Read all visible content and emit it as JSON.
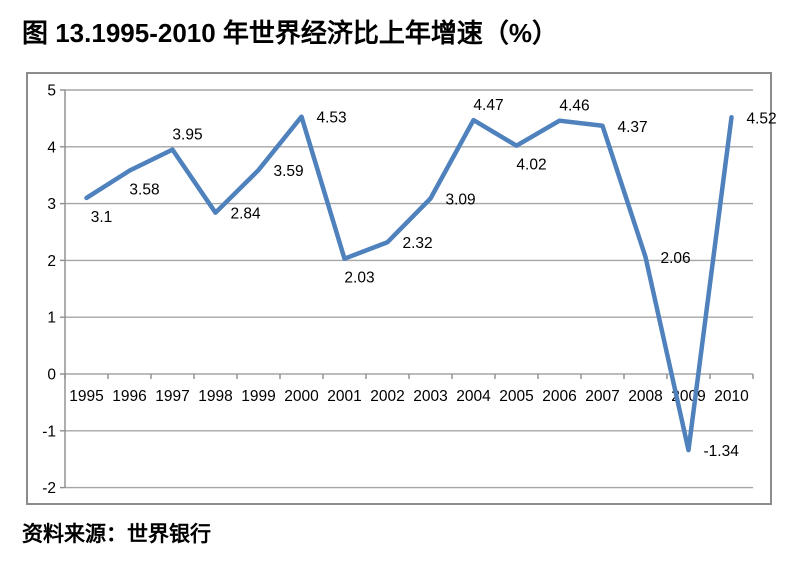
{
  "chart_data": {
    "type": "line",
    "title": "图 13.1995-2010 年世界经济比上年增速（%）",
    "source": "资料来源：世界银行",
    "categories": [
      "1995",
      "1996",
      "1997",
      "1998",
      "1999",
      "2000",
      "2001",
      "2002",
      "2003",
      "2004",
      "2005",
      "2006",
      "2007",
      "2008",
      "2009",
      "2010"
    ],
    "values": [
      3.1,
      3.58,
      3.95,
      2.84,
      3.59,
      4.53,
      2.03,
      2.32,
      3.09,
      4.47,
      4.02,
      4.46,
      4.37,
      2.06,
      -1.34,
      4.52
    ],
    "point_labels": [
      "3.1",
      "3.58",
      "3.95",
      "2.84",
      "3.59",
      "4.53",
      "2.03",
      "2.32",
      "3.09",
      "4.47",
      "4.02",
      "4.46",
      "4.37",
      "2.06",
      "-1.34",
      "4.52"
    ],
    "yticks": [
      "5",
      "4",
      "3",
      "2",
      "1",
      "0",
      "-1",
      "-2"
    ],
    "ylim": [
      -2,
      5
    ],
    "xlabel": "",
    "ylabel": "",
    "grid": "horizontal",
    "legend": "none",
    "label_placements": [
      "below",
      "below",
      "above",
      "right",
      "right",
      "right",
      "below",
      "right",
      "right",
      "above",
      "below",
      "above",
      "right",
      "right",
      "right",
      "right"
    ],
    "colors": {
      "line": "#4F81BD",
      "grid": "#A6A6A6",
      "axis": "#8C8C8C",
      "border": "#8C8C8C",
      "text": "#000000"
    }
  }
}
